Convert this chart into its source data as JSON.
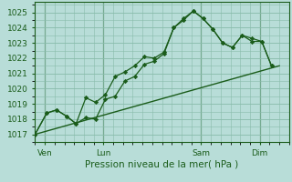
{
  "title": "",
  "xlabel": "Pression niveau de la mer( hPa )",
  "bg_color": "#b8ddd8",
  "grid_color": "#88bbaa",
  "line_color": "#1a5c1a",
  "marker_color": "#1a5c1a",
  "ylim": [
    1016.5,
    1025.7
  ],
  "yticks": [
    1017,
    1018,
    1019,
    1020,
    1021,
    1022,
    1023,
    1024,
    1025
  ],
  "xlim": [
    0,
    13.0
  ],
  "day_labels": [
    "Ven",
    "Lun",
    "Sam",
    "Dim"
  ],
  "day_positions": [
    0.5,
    3.5,
    8.5,
    11.5
  ],
  "vline_positions": [
    0.5,
    3.5,
    8.5,
    11.5
  ],
  "series1_x": [
    0.0,
    0.6,
    1.1,
    1.6,
    2.1,
    2.6,
    3.1,
    3.6,
    4.1,
    4.6,
    5.1,
    5.6,
    6.1,
    6.6,
    7.1,
    7.6,
    8.1,
    8.6,
    9.1,
    9.6,
    10.1,
    10.6,
    11.1,
    11.6,
    12.1
  ],
  "series1_y": [
    1017.0,
    1018.4,
    1018.6,
    1018.2,
    1017.7,
    1019.4,
    1019.1,
    1019.6,
    1020.8,
    1021.1,
    1021.5,
    1022.1,
    1022.0,
    1022.4,
    1024.0,
    1024.6,
    1025.1,
    1024.6,
    1023.9,
    1023.0,
    1022.7,
    1023.5,
    1023.3,
    1023.1,
    1021.5
  ],
  "series2_x": [
    0.0,
    0.6,
    1.1,
    1.6,
    2.1,
    2.6,
    3.1,
    3.6,
    4.1,
    4.6,
    5.1,
    5.6,
    6.1,
    6.6,
    7.1,
    7.6,
    8.1,
    8.6,
    9.1,
    9.6,
    10.1,
    10.6,
    11.1,
    11.6,
    12.1
  ],
  "series2_y": [
    1017.0,
    1018.4,
    1018.6,
    1018.2,
    1017.7,
    1018.1,
    1018.0,
    1019.3,
    1019.5,
    1020.5,
    1020.8,
    1021.6,
    1021.8,
    1022.3,
    1024.0,
    1024.5,
    1025.1,
    1024.6,
    1023.9,
    1023.0,
    1022.7,
    1023.5,
    1023.1,
    1023.1,
    1021.5
  ],
  "series3_x": [
    0.0,
    12.5
  ],
  "series3_y": [
    1017.0,
    1021.5
  ]
}
